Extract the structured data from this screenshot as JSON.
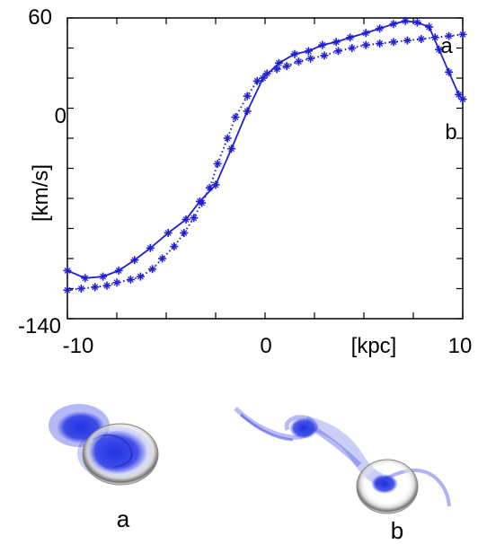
{
  "chart_data": {
    "type": "line",
    "xlabel": "[kpc]",
    "ylabel": "[km/s]",
    "xlim": [
      -10,
      10
    ],
    "ylim": [
      -140,
      60
    ],
    "x_ticks": [
      "-10",
      "0",
      "10"
    ],
    "y_ticks": [
      "60",
      "0",
      "-140"
    ],
    "grid": false,
    "series": [
      {
        "name": "a",
        "style": "dotted",
        "color": "#1f1fd6",
        "x": [
          -10.0,
          -9.3,
          -8.6,
          -8.0,
          -7.5,
          -6.8,
          -6.3,
          -5.7,
          -5.2,
          -4.6,
          -4.1,
          -3.6,
          -3.2,
          -2.8,
          -2.4,
          -1.9,
          -1.5,
          -0.9,
          -0.4,
          0.1,
          0.6,
          1.1,
          1.7,
          2.3,
          3.0,
          3.7,
          4.4,
          5.1,
          5.8,
          6.5,
          7.2,
          7.9,
          8.6,
          9.3,
          10.0
        ],
        "y": [
          -121,
          -120,
          -119,
          -118,
          -116,
          -114,
          -112,
          -107,
          -100,
          -92,
          -83,
          -73,
          -63,
          -53,
          -37,
          -20,
          -6,
          8,
          18,
          23,
          26,
          28,
          31,
          33,
          35,
          38,
          40,
          42,
          43,
          44,
          45,
          46,
          47,
          48,
          49
        ]
      },
      {
        "name": "b",
        "style": "solid",
        "color": "#1f1fd6",
        "x": [
          -10.0,
          -9.1,
          -8.2,
          -7.4,
          -6.6,
          -5.8,
          -4.9,
          -4.0,
          -3.3,
          -2.5,
          -1.7,
          -0.9,
          -0.1,
          0.7,
          1.5,
          2.2,
          2.9,
          3.6,
          4.3,
          5.1,
          5.8,
          6.5,
          7.1,
          7.7,
          8.3,
          8.8,
          9.3,
          9.8,
          10.0
        ],
        "y": [
          -108,
          -113,
          -112,
          -108,
          -101,
          -93,
          -83,
          -74,
          -62,
          -51,
          -27,
          -2,
          20,
          30,
          36,
          38,
          42,
          44,
          47,
          50,
          53,
          56,
          58,
          57,
          54,
          39,
          24,
          9,
          6
        ]
      }
    ]
  },
  "images": {
    "left_label": "a",
    "right_label": "b"
  }
}
